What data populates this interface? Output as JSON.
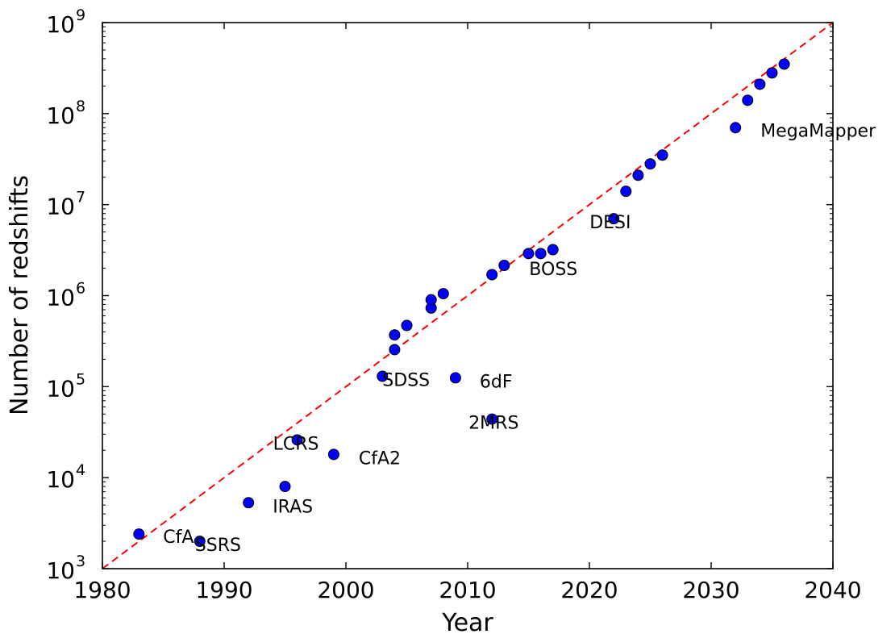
{
  "chart_data": {
    "type": "scatter",
    "xlabel": "Year",
    "ylabel": "Number of redshifts",
    "xlim": [
      1980,
      2040
    ],
    "ylim": [
      1000,
      1000000000
    ],
    "yscale": "log",
    "xticks": [
      "1980",
      "1990",
      "2000",
      "2010",
      "2020",
      "2030",
      "2040"
    ],
    "yticks": [
      {
        "base": "10",
        "exp": "3"
      },
      {
        "base": "10",
        "exp": "4"
      },
      {
        "base": "10",
        "exp": "5"
      },
      {
        "base": "10",
        "exp": "6"
      },
      {
        "base": "10",
        "exp": "7"
      },
      {
        "base": "10",
        "exp": "8"
      },
      {
        "base": "10",
        "exp": "9"
      }
    ],
    "grid": false,
    "marker_color": "#0000ff",
    "trend_color": "#ff0000",
    "trend_line": {
      "x": [
        1980,
        2040
      ],
      "y": [
        1000,
        1000000000
      ]
    },
    "points": [
      {
        "x": 1983,
        "y": 2400
      },
      {
        "x": 1988,
        "y": 2000
      },
      {
        "x": 1992,
        "y": 5300
      },
      {
        "x": 1995,
        "y": 8000
      },
      {
        "x": 1996,
        "y": 26000
      },
      {
        "x": 1999,
        "y": 18000
      },
      {
        "x": 2003,
        "y": 130000
      },
      {
        "x": 2004,
        "y": 255000
      },
      {
        "x": 2004,
        "y": 370000
      },
      {
        "x": 2005,
        "y": 470000
      },
      {
        "x": 2007,
        "y": 730000
      },
      {
        "x": 2007,
        "y": 900000
      },
      {
        "x": 2008,
        "y": 1050000
      },
      {
        "x": 2009,
        "y": 125000
      },
      {
        "x": 2012,
        "y": 44000
      },
      {
        "x": 2012,
        "y": 1700000
      },
      {
        "x": 2013,
        "y": 2150000
      },
      {
        "x": 2015,
        "y": 2900000
      },
      {
        "x": 2016,
        "y": 2900000
      },
      {
        "x": 2017,
        "y": 3200000
      },
      {
        "x": 2022,
        "y": 7000000
      },
      {
        "x": 2023,
        "y": 14000000
      },
      {
        "x": 2024,
        "y": 21000000
      },
      {
        "x": 2025,
        "y": 28000000
      },
      {
        "x": 2026,
        "y": 35000000
      },
      {
        "x": 2032,
        "y": 70000000
      },
      {
        "x": 2033,
        "y": 140000000
      },
      {
        "x": 2034,
        "y": 210000000
      },
      {
        "x": 2035,
        "y": 280000000
      },
      {
        "x": 2036,
        "y": 350000000
      }
    ],
    "annotations": [
      {
        "text": "CfA",
        "x": 1983,
        "y": 2400
      },
      {
        "text": "SSRS",
        "x": 1988,
        "y": 2000
      },
      {
        "text": "IRAS",
        "x": 1992,
        "y": 5300
      },
      {
        "text": "LCRS",
        "x": 1996,
        "y": 26000
      },
      {
        "text": "CfA2",
        "x": 1999,
        "y": 18000
      },
      {
        "text": "SDSS",
        "x": 2003,
        "y": 130000
      },
      {
        "text": "6dF",
        "x": 2009,
        "y": 125000
      },
      {
        "text": "2MRS",
        "x": 2012,
        "y": 44000
      },
      {
        "text": "BOSS",
        "x": 2013,
        "y": 2150000
      },
      {
        "text": "DESI",
        "x": 2022,
        "y": 7000000
      },
      {
        "text": "MegaMapper",
        "x": 2032,
        "y": 70000000
      }
    ]
  }
}
